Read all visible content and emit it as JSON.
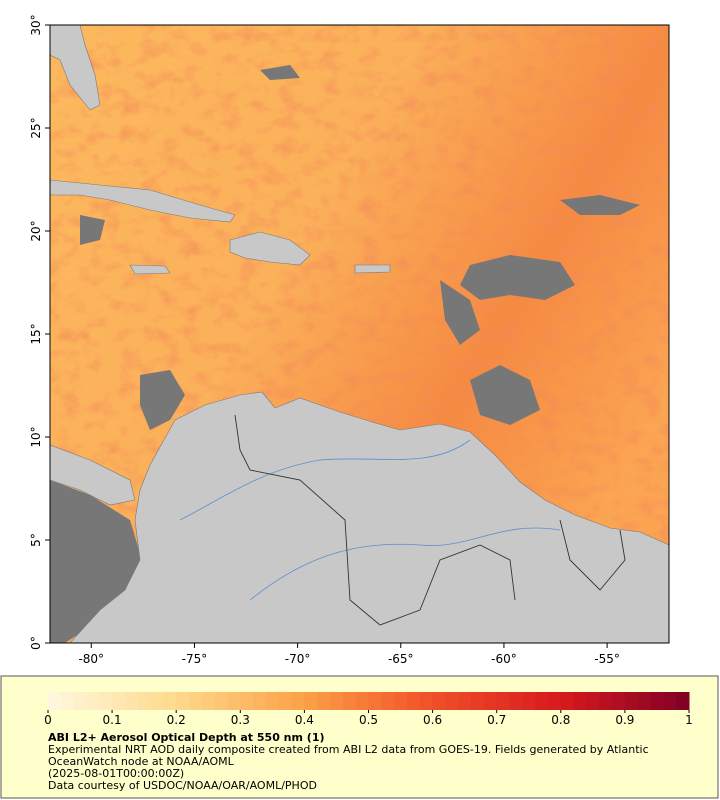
{
  "map": {
    "xlim": [
      -82,
      -52
    ],
    "ylim": [
      0,
      30
    ],
    "xticks": [
      {
        "value": -80,
        "label": "-80°"
      },
      {
        "value": -75,
        "label": "-75°"
      },
      {
        "value": -70,
        "label": "-70°"
      },
      {
        "value": -65,
        "label": "-65°"
      },
      {
        "value": -60,
        "label": "-60°"
      },
      {
        "value": -55,
        "label": "-55°"
      }
    ],
    "yticks": [
      {
        "value": 0,
        "label": "0°"
      },
      {
        "value": 5,
        "label": "5°"
      },
      {
        "value": 10,
        "label": "10°"
      },
      {
        "value": 15,
        "label": "15°"
      },
      {
        "value": 20,
        "label": "20°"
      },
      {
        "value": 25,
        "label": "25°"
      },
      {
        "value": 30,
        "label": "30°"
      }
    ]
  },
  "colorbar": {
    "range": [
      0,
      1
    ],
    "ticks": [
      0,
      0.1,
      0.2,
      0.3,
      0.4,
      0.5,
      0.6,
      0.7,
      0.8,
      0.9,
      1
    ]
  },
  "caption": {
    "title": "ABI L2+ Aerosol Optical Depth at 550 nm (1)",
    "description": "Experimental NRT AOD daily composite created from ABI L2 data from GOES-19. Fields generated by Atlantic OceanWatch node at NOAA/AOML",
    "date": "(2025-08-01T00:00:00Z)",
    "credit": "Data courtesy of USDOC/NOAA/OAR/AOML/PHOD"
  }
}
